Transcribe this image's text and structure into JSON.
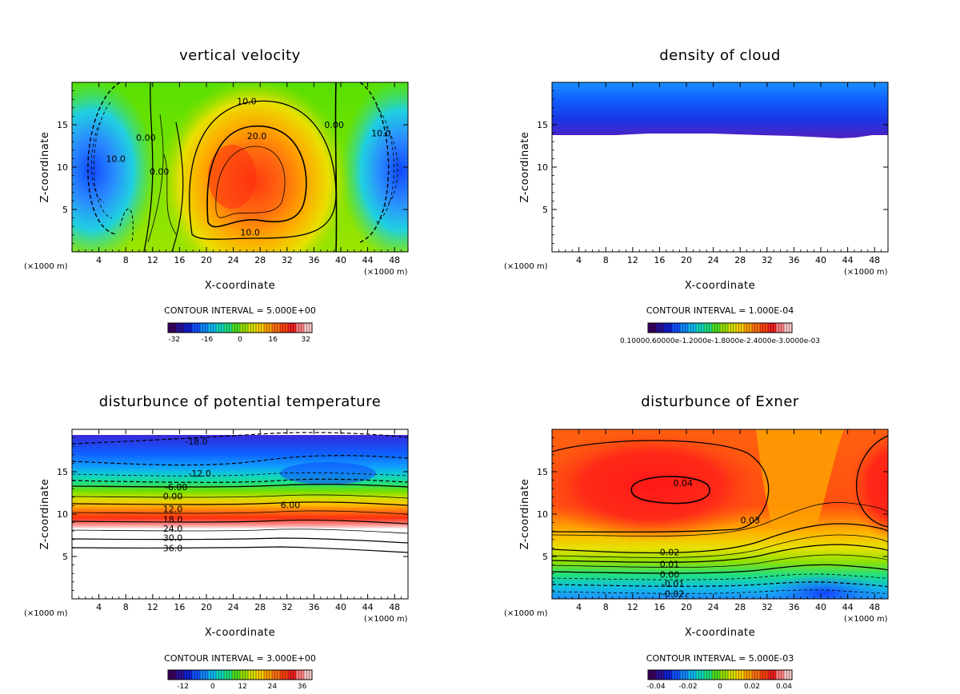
{
  "chart_data": [
    {
      "type": "heatmap",
      "title": "vertical velocity",
      "xlabel": "X-coordinate",
      "ylabel": "Z-coordinate",
      "x_unit_left": "(×1000 m)",
      "x_unit_right": "(×1000 m)",
      "xlim": [
        0,
        50
      ],
      "ylim": [
        0,
        20
      ],
      "xticks": [
        4,
        8,
        12,
        16,
        20,
        24,
        28,
        32,
        36,
        40,
        44,
        48
      ],
      "yticks": [
        5,
        10,
        15
      ],
      "contour_interval": "CONTOUR INTERVAL = 5.000E+00",
      "colorbar_ticks": [
        "-32",
        "-16",
        "0",
        "16",
        "32"
      ],
      "colorbar_range": [
        -35,
        35
      ],
      "contour_labels": [
        {
          "text": "10.0",
          "x": 26,
          "y": 17.8
        },
        {
          "text": "20.0",
          "x": 27.5,
          "y": 13.7
        },
        {
          "text": "10.0",
          "x": 26.5,
          "y": 2.3
        },
        {
          "text": "0.00",
          "x": 39,
          "y": 15
        },
        {
          "text": "10.0",
          "x": 46,
          "y": 14
        },
        {
          "text": "10.0",
          "x": 6.5,
          "y": 11
        },
        {
          "text": "0.00",
          "x": 11,
          "y": 13.5
        },
        {
          "text": "0.00",
          "x": 13,
          "y": 9.5
        }
      ],
      "features": [
        {
          "kind": "updraft",
          "x": 24,
          "z": 9,
          "peak": 30
        },
        {
          "kind": "downdraft",
          "x": 2,
          "z": 10,
          "peak": -30
        },
        {
          "kind": "downdraft",
          "x": 49,
          "z": 10,
          "peak": -30
        }
      ]
    },
    {
      "type": "heatmap",
      "title": "density of cloud",
      "xlabel": "X-coordinate",
      "ylabel": "Z-coordinate",
      "x_unit_left": "(×1000 m)",
      "x_unit_right": "(×1000 m)",
      "xlim": [
        0,
        50
      ],
      "ylim": [
        0,
        20
      ],
      "xticks": [
        4,
        8,
        12,
        16,
        20,
        24,
        28,
        32,
        36,
        40,
        44,
        48
      ],
      "yticks": [
        5,
        10,
        15
      ],
      "contour_interval": "CONTOUR INTERVAL = 1.000E-04",
      "colorbar_ticks_text": "0.10000.60000e-1.2000e-1.8000e-2.4000e-3.0000e-03",
      "cloud_base_z": 13.8,
      "cloud_top_z": 20
    },
    {
      "type": "heatmap",
      "title": "disturbunce of potential temperature",
      "xlabel": "X-coordinate",
      "ylabel": "Z-coordinate",
      "x_unit_left": "(×1000 m)",
      "x_unit_right": "(×1000 m)",
      "xlim": [
        0,
        50
      ],
      "ylim": [
        0,
        20
      ],
      "xticks": [
        4,
        8,
        12,
        16,
        20,
        24,
        28,
        32,
        36,
        40,
        44,
        48
      ],
      "yticks": [
        5,
        10,
        15
      ],
      "contour_interval": "CONTOUR INTERVAL = 3.000E+00",
      "colorbar_ticks": [
        "-12",
        "0",
        "12",
        "24",
        "36"
      ],
      "colorbar_range": [
        -18,
        40
      ],
      "contour_labels": [
        {
          "text": "-18.0",
          "x": 18.5,
          "y": 18.6
        },
        {
          "text": "-12.0",
          "x": 19,
          "y": 14.8
        },
        {
          "text": "-6.00",
          "x": 15.5,
          "y": 13.2
        },
        {
          "text": "0.00",
          "x": 15,
          "y": 12.1
        },
        {
          "text": "6.00",
          "x": 32.5,
          "y": 11.1
        },
        {
          "text": "12.0",
          "x": 15,
          "y": 10.6
        },
        {
          "text": "18.0",
          "x": 15,
          "y": 9.4
        },
        {
          "text": "24.0",
          "x": 15,
          "y": 8.3
        },
        {
          "text": "30.0",
          "x": 15,
          "y": 7.2
        },
        {
          "text": "36.0",
          "x": 15,
          "y": 6.0
        }
      ]
    },
    {
      "type": "heatmap",
      "title": "disturbunce of Exner",
      "xlabel": "X-coordinate",
      "ylabel": "Z-coordinate",
      "x_unit_left": "(×1000 m)",
      "x_unit_right": "(×1000 m)",
      "xlim": [
        0,
        50
      ],
      "ylim": [
        0,
        20
      ],
      "xticks": [
        4,
        8,
        12,
        16,
        20,
        24,
        28,
        32,
        36,
        40,
        44,
        48
      ],
      "yticks": [
        5,
        10,
        15
      ],
      "contour_interval": "CONTOUR INTERVAL = 5.000E-03",
      "colorbar_ticks": [
        "-0.04",
        "-0.02",
        "0",
        "0.02",
        "0.04"
      ],
      "colorbar_range": [
        -0.045,
        0.045
      ],
      "contour_labels": [
        {
          "text": "0.04",
          "x": 19.5,
          "y": 13.7
        },
        {
          "text": "0.03",
          "x": 29.5,
          "y": 9.3
        },
        {
          "text": "0.02",
          "x": 17.5,
          "y": 5.5
        },
        {
          "text": "0.01",
          "x": 17.5,
          "y": 4.1
        },
        {
          "text": "0.00",
          "x": 17.5,
          "y": 2.9
        },
        {
          "text": "-0.01",
          "x": 18,
          "y": 1.8
        },
        {
          "text": "-0.02",
          "x": 18,
          "y": 0.6
        }
      ]
    }
  ]
}
